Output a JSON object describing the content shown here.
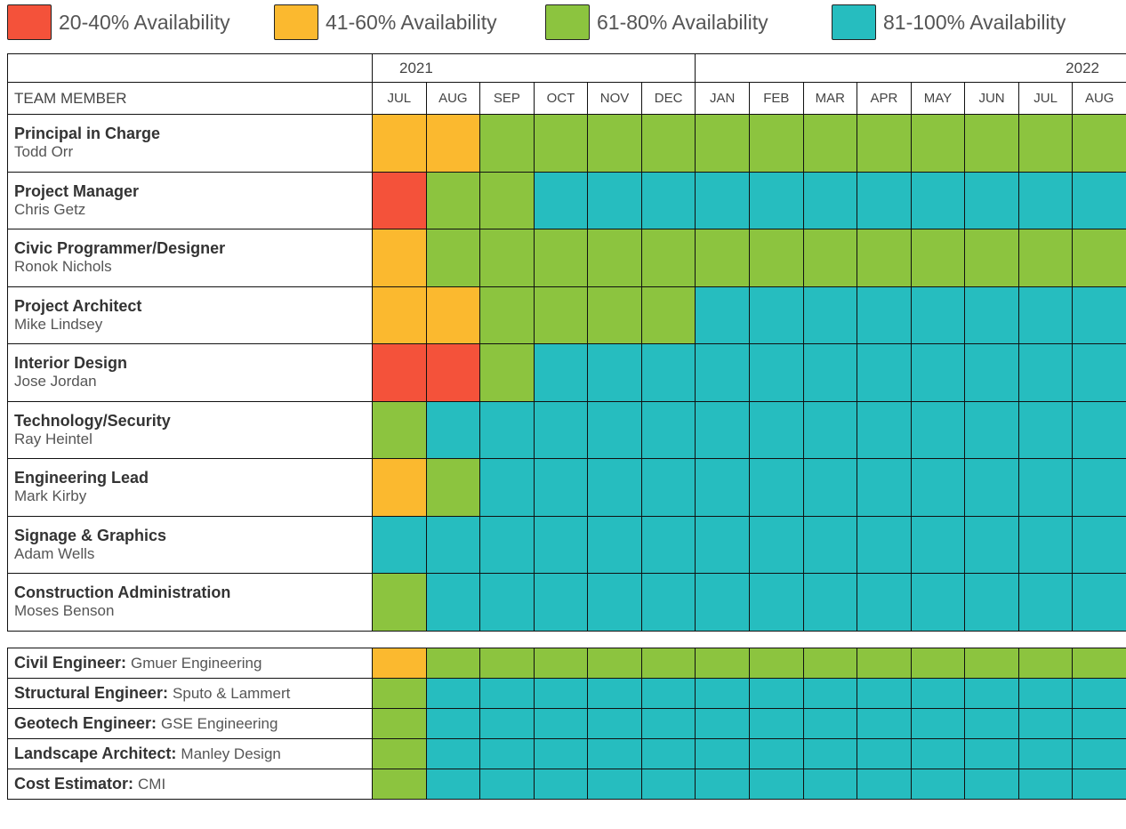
{
  "legend": [
    {
      "label": "20-40% Availability",
      "color": "#f4523a"
    },
    {
      "label": "41-60% Availability",
      "color": "#fbb92f"
    },
    {
      "label": "61-80% Availability",
      "color": "#8cc43f"
    },
    {
      "label": "81-100% Availability",
      "color": "#26bdbf"
    }
  ],
  "table": {
    "years": [
      {
        "label": "2021",
        "span": 6
      },
      {
        "label": "2022",
        "span": 8
      }
    ],
    "header": "TEAM MEMBER",
    "months": [
      "JUL",
      "AUG",
      "SEP",
      "OCT",
      "NOV",
      "DEC",
      "JAN",
      "FEB",
      "MAR",
      "APR",
      "MAY",
      "JUN",
      "JUL",
      "AUG"
    ],
    "rows": [
      {
        "role": "Principal in Charge",
        "name": "Todd Orr",
        "levels": [
          1,
          1,
          2,
          2,
          2,
          2,
          2,
          2,
          2,
          2,
          2,
          2,
          2,
          2
        ]
      },
      {
        "role": "Project Manager",
        "name": "Chris Getz",
        "levels": [
          0,
          2,
          2,
          3,
          3,
          3,
          3,
          3,
          3,
          3,
          3,
          3,
          3,
          3
        ]
      },
      {
        "role": "Civic Programmer/Designer",
        "name": "Ronok Nichols",
        "levels": [
          1,
          2,
          2,
          2,
          2,
          2,
          2,
          2,
          2,
          2,
          2,
          2,
          2,
          2
        ]
      },
      {
        "role": "Project Architect",
        "name": "Mike Lindsey",
        "levels": [
          1,
          1,
          2,
          2,
          2,
          2,
          3,
          3,
          3,
          3,
          3,
          3,
          3,
          3
        ]
      },
      {
        "role": "Interior Design",
        "name": "Jose Jordan",
        "levels": [
          0,
          0,
          2,
          3,
          3,
          3,
          3,
          3,
          3,
          3,
          3,
          3,
          3,
          3
        ]
      },
      {
        "role": "Technology/Security",
        "name": "Ray Heintel",
        "levels": [
          2,
          3,
          3,
          3,
          3,
          3,
          3,
          3,
          3,
          3,
          3,
          3,
          3,
          3
        ]
      },
      {
        "role": "Engineering Lead",
        "name": "Mark Kirby",
        "levels": [
          1,
          2,
          3,
          3,
          3,
          3,
          3,
          3,
          3,
          3,
          3,
          3,
          3,
          3
        ]
      },
      {
        "role": "Signage & Graphics",
        "name": "Adam Wells",
        "levels": [
          3,
          3,
          3,
          3,
          3,
          3,
          3,
          3,
          3,
          3,
          3,
          3,
          3,
          3
        ]
      },
      {
        "role": "Construction Administration",
        "name": "Moses Benson",
        "levels": [
          2,
          3,
          3,
          3,
          3,
          3,
          3,
          3,
          3,
          3,
          3,
          3,
          3,
          3
        ]
      }
    ]
  },
  "consultants": {
    "rows": [
      {
        "role": "Civil Engineer:",
        "name": "Gmuer Engineering",
        "levels": [
          1,
          2,
          2,
          2,
          2,
          2,
          2,
          2,
          2,
          2,
          2,
          2,
          2,
          2
        ]
      },
      {
        "role": "Structural Engineer:",
        "name": "Sputo & Lammert",
        "levels": [
          2,
          3,
          3,
          3,
          3,
          3,
          3,
          3,
          3,
          3,
          3,
          3,
          3,
          3
        ]
      },
      {
        "role": "Geotech Engineer:",
        "name": "GSE Engineering",
        "levels": [
          2,
          3,
          3,
          3,
          3,
          3,
          3,
          3,
          3,
          3,
          3,
          3,
          3,
          3
        ]
      },
      {
        "role": "Landscape Architect:",
        "name": "Manley Design",
        "levels": [
          2,
          3,
          3,
          3,
          3,
          3,
          3,
          3,
          3,
          3,
          3,
          3,
          3,
          3
        ]
      },
      {
        "role": "Cost Estimator:",
        "name": "CMI",
        "levels": [
          2,
          3,
          3,
          3,
          3,
          3,
          3,
          3,
          3,
          3,
          3,
          3,
          3,
          3
        ]
      }
    ]
  }
}
